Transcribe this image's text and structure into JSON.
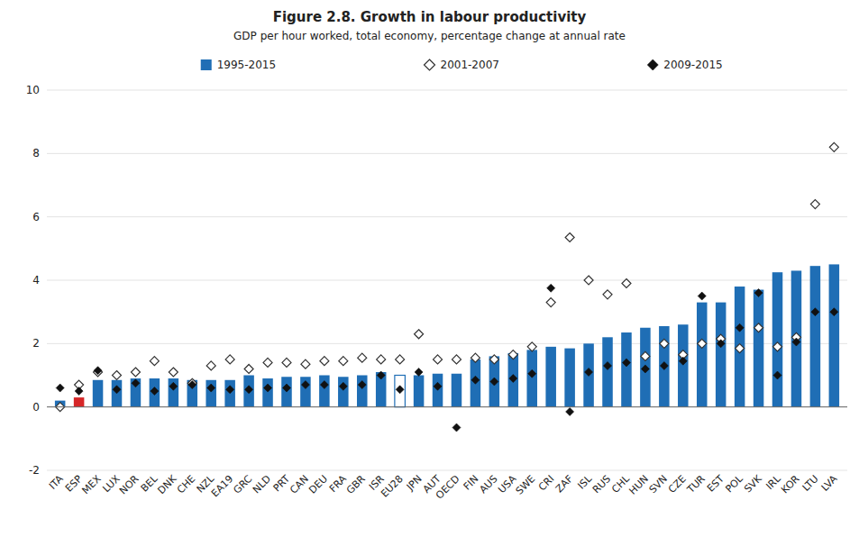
{
  "chart_data": {
    "type": "bar",
    "title": "Figure 2.8. Growth in labour productivity",
    "subtitle": "GDP per hour worked, total economy, percentage change at annual rate",
    "categories": [
      "ITA",
      "ESP",
      "MEX",
      "LUX",
      "NOR",
      "BEL",
      "DNK",
      "CHE",
      "NZL",
      "EA19",
      "GRC",
      "NLD",
      "PRT",
      "CAN",
      "DEU",
      "FRA",
      "GBR",
      "ISR",
      "EU28",
      "JPN",
      "AUT",
      "OECD",
      "FIN",
      "AUS",
      "USA",
      "SWE",
      "CRI",
      "ZAF",
      "ISL",
      "RUS",
      "CHL",
      "HUN",
      "SVN",
      "CZE",
      "TUR",
      "EST",
      "POL",
      "SVK",
      "IRL",
      "KOR",
      "LTU",
      "LVA"
    ],
    "series": [
      {
        "name": "1995-2015",
        "type": "bar",
        "color": "#1f6eb5",
        "colors": [
          "#1f6eb5",
          "#d62728",
          "#1f6eb5",
          "#1f6eb5",
          "#1f6eb5",
          "#1f6eb5",
          "#1f6eb5",
          "#1f6eb5",
          "#1f6eb5",
          "#1f6eb5",
          "#1f6eb5",
          "#1f6eb5",
          "#1f6eb5",
          "#1f6eb5",
          "#1f6eb5",
          "#1f6eb5",
          "#1f6eb5",
          "#1f6eb5",
          "#ffffff",
          "#1f6eb5",
          "#1f6eb5",
          "#1f6eb5",
          "#1f6eb5",
          "#1f6eb5",
          "#1f6eb5",
          "#1f6eb5",
          "#1f6eb5",
          "#1f6eb5",
          "#1f6eb5",
          "#1f6eb5",
          "#1f6eb5",
          "#1f6eb5",
          "#1f6eb5",
          "#1f6eb5",
          "#1f6eb5",
          "#1f6eb5",
          "#1f6eb5",
          "#1f6eb5",
          "#1f6eb5",
          "#1f6eb5",
          "#1f6eb5",
          "#1f6eb5"
        ],
        "values": [
          0.2,
          0.3,
          0.85,
          0.85,
          0.9,
          0.9,
          0.9,
          0.85,
          0.85,
          0.85,
          1.0,
          0.9,
          0.95,
          0.95,
          1.0,
          0.95,
          1.0,
          1.1,
          1.0,
          1.0,
          1.05,
          1.05,
          1.5,
          1.6,
          1.7,
          1.8,
          1.9,
          1.85,
          2.0,
          2.2,
          2.35,
          2.5,
          2.55,
          2.6,
          3.3,
          3.3,
          3.8,
          3.7,
          4.25,
          4.3,
          4.45,
          4.5
        ]
      },
      {
        "name": "2001-2007",
        "type": "scatter",
        "marker": "open-diamond",
        "color": "#333333",
        "values": [
          0.0,
          0.7,
          1.1,
          1.0,
          1.1,
          1.45,
          1.1,
          0.75,
          1.3,
          1.5,
          1.2,
          1.4,
          1.4,
          1.35,
          1.45,
          1.45,
          1.55,
          1.5,
          1.5,
          2.3,
          1.5,
          1.5,
          1.55,
          1.5,
          1.65,
          1.9,
          3.3,
          5.35,
          4.0,
          3.55,
          3.9,
          1.6,
          2.0,
          1.65,
          2.0,
          2.15,
          1.85,
          2.5,
          1.9,
          2.2,
          6.4,
          8.2
        ]
      },
      {
        "name": "2009-2015",
        "type": "scatter",
        "marker": "filled-diamond",
        "color": "#111111",
        "values": [
          0.6,
          0.5,
          1.15,
          0.55,
          0.75,
          0.5,
          0.65,
          0.7,
          0.6,
          0.55,
          0.55,
          0.6,
          0.6,
          0.7,
          0.7,
          0.65,
          0.7,
          1.0,
          0.55,
          1.1,
          0.65,
          -0.65,
          0.85,
          0.8,
          0.9,
          1.05,
          3.75,
          -0.15,
          1.1,
          1.3,
          1.4,
          1.2,
          1.3,
          1.45,
          3.5,
          2.0,
          2.5,
          3.6,
          1.0,
          2.05,
          3.0,
          3.0
        ]
      }
    ],
    "ylim": [
      -2,
      10
    ],
    "yticks": [
      -2,
      0,
      2,
      4,
      6,
      8,
      10
    ],
    "grid": true,
    "legend": "top"
  }
}
